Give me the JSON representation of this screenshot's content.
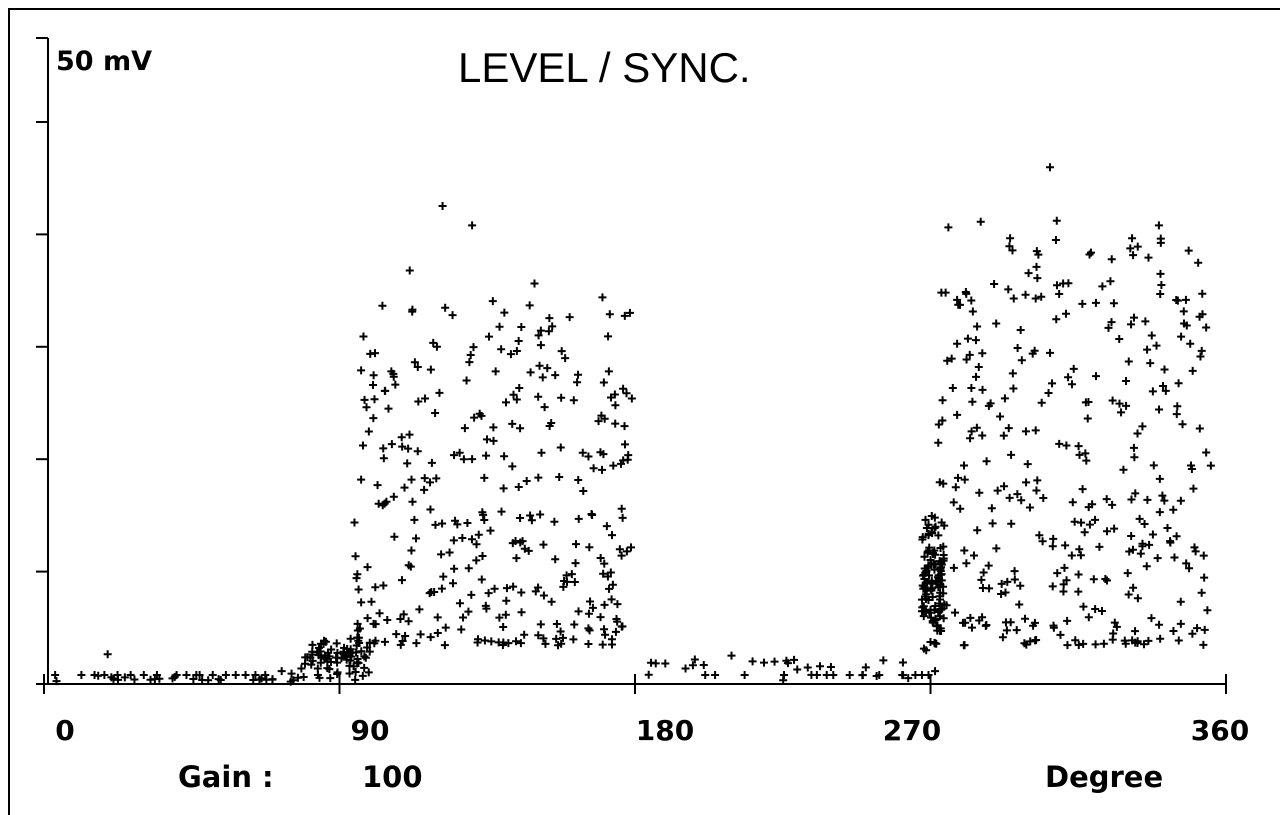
{
  "chart_data": {
    "type": "scatter",
    "title": "LEVEL / SYNC.",
    "y_scale_label": "50 mV",
    "xlabel": "Degree",
    "gain_label": "Gain :",
    "gain_value": "100",
    "xlim": [
      0,
      360
    ],
    "ylim": [
      0,
      50
    ],
    "x_ticks": [
      "0",
      "90",
      "180",
      "270",
      "360"
    ],
    "x_tick_values": [
      0,
      90,
      180,
      270,
      360
    ],
    "y_tick_values": [
      8.7,
      17.4,
      26.1,
      34.8,
      43.5,
      50
    ],
    "grid": false,
    "clusters": [
      {
        "x_range": [
          4,
          80
        ],
        "y_range": [
          0,
          0.8
        ],
        "count": 28
      },
      {
        "x_range": [
          80,
          100
        ],
        "y_range": [
          0,
          4
        ],
        "count": 70
      },
      {
        "x_range": [
          95,
          180
        ],
        "y_range": [
          3,
          30
        ],
        "count": 330
      },
      {
        "x_range": [
          180,
          270
        ],
        "y_range": [
          0,
          2.5
        ],
        "count": 26
      },
      {
        "x_range": [
          268,
          275
        ],
        "y_range": [
          2,
          14
        ],
        "count": 110
      },
      {
        "x_range": [
          272,
          355
        ],
        "y_range": [
          3,
          36
        ],
        "count": 340
      }
    ],
    "points": [
      [
        4,
        0.7
      ],
      [
        12,
        0.7
      ],
      [
        16,
        0.7
      ],
      [
        19,
        0.7
      ],
      [
        20,
        2.3
      ],
      [
        23,
        0.7
      ],
      [
        27,
        0.7
      ],
      [
        31,
        0.7
      ],
      [
        35,
        0.7
      ],
      [
        41,
        0.7
      ],
      [
        44,
        0.7
      ],
      [
        47,
        0.7
      ],
      [
        48,
        0.7
      ],
      [
        52,
        0.7
      ],
      [
        56,
        0.7
      ],
      [
        59,
        0.7
      ],
      [
        62,
        0.7
      ],
      [
        65,
        0.7
      ],
      [
        68,
        0.7
      ],
      [
        73,
        1.0
      ],
      [
        76,
        0.8
      ],
      [
        79,
        1.2
      ],
      [
        82,
        1.5
      ],
      [
        84,
        1.2
      ],
      [
        86,
        2.0
      ],
      [
        88,
        1.7
      ],
      [
        90,
        0.9
      ],
      [
        92,
        2.8
      ],
      [
        94,
        3.5
      ],
      [
        101,
        23.9
      ],
      [
        107,
        24.0
      ],
      [
        112,
        32.0
      ],
      [
        122,
        37.0
      ],
      [
        131,
        35.5
      ],
      [
        150,
        31.0
      ],
      [
        168,
        16.7
      ],
      [
        174,
        16.9
      ],
      [
        196,
        1.2
      ],
      [
        202,
        0.7
      ],
      [
        205,
        0.7
      ],
      [
        210,
        2.2
      ],
      [
        214,
        0.7
      ],
      [
        226,
        0.7
      ],
      [
        236,
        0.7
      ],
      [
        239,
        0.7
      ],
      [
        241,
        0.7
      ],
      [
        246,
        0.7
      ],
      [
        250,
        0.7
      ],
      [
        255,
        0.7
      ],
      [
        262,
        0.7
      ],
      [
        266,
        0.7
      ],
      [
        268,
        0.7
      ],
      [
        270,
        0.7
      ],
      [
        272,
        1.0
      ],
      [
        270,
        6.5
      ],
      [
        271,
        8.0
      ],
      [
        272,
        10.0
      ],
      [
        273,
        11.5
      ],
      [
        274,
        12.5
      ],
      [
        271,
        13.0
      ],
      [
        270,
        9.0
      ],
      [
        273,
        7.5
      ],
      [
        303,
        33.5
      ],
      [
        307,
        40.0
      ],
      [
        311,
        31.0
      ],
      [
        321,
        29.5
      ],
      [
        332,
        34.5
      ],
      [
        337,
        33.0
      ],
      [
        356,
        16.9
      ]
    ]
  }
}
